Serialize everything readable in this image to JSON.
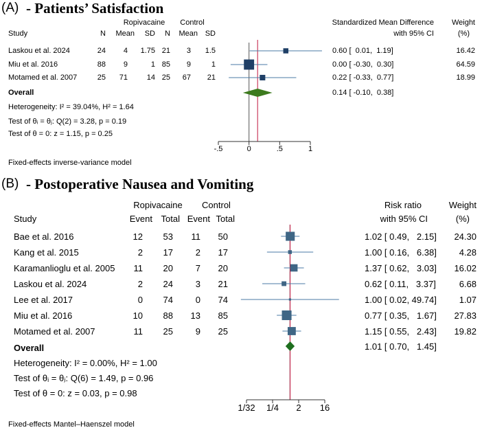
{
  "panel_a": {
    "letter": "(A)",
    "title": "- Patients’ Satisfaction",
    "header": {
      "group1": "Ropivacaine",
      "group2": "Control",
      "study": "Study",
      "cols": [
        "N",
        "Mean",
        "SD",
        "N",
        "Mean",
        "SD"
      ],
      "effect_line1": "Standardized Mean Difference",
      "effect_line2": "with 95% CI",
      "weight_line1": "Weight",
      "weight_line2": "(%)"
    },
    "rows": [
      {
        "study": "Laskou et al. 2024",
        "vals": [
          "24",
          "4",
          "1.75",
          "21",
          "3",
          "1.5"
        ],
        "effect_text": "0.60 [  0.01,  1.19]",
        "weight_text": "16.42"
      },
      {
        "study": "Miu et al. 2016",
        "vals": [
          "88",
          "9",
          "1",
          "85",
          "9",
          "1"
        ],
        "effect_text": "0.00 [ -0.30,  0.30]",
        "weight_text": "64.59"
      },
      {
        "study": "Motamed et al. 2007",
        "vals": [
          "25",
          "71",
          "14",
          "25",
          "67",
          "21"
        ],
        "effect_text": "0.22 [ -0.33,  0.77]",
        "weight_text": "18.99"
      }
    ],
    "overall": {
      "label": "Overall",
      "effect_text": "0.14 [ -0.10,  0.38]"
    },
    "stats": [
      "Heterogeneity: I² = 39.04%, H² = 1.64",
      "Test of θᵢ = θⱼ: Q(2) = 3.28, p = 0.19",
      "Test of θ = 0: z = 1.15, p = 0.25"
    ],
    "footer": "Fixed-effects inverse-variance model"
  },
  "panel_b": {
    "letter": "(B)",
    "title": "- Postoperative Nausea and Vomiting",
    "header": {
      "group1": "Ropivacaine",
      "group2": "Control",
      "study": "Study",
      "cols": [
        "Event",
        "Total",
        "Event",
        "Total"
      ],
      "effect_line1": "Risk ratio",
      "effect_line2": "with 95% CI",
      "weight_line1": "Weight",
      "weight_line2": "(%)"
    },
    "rows": [
      {
        "study": "Bae et al. 2016",
        "vals": [
          "12",
          "53",
          "11",
          "50"
        ],
        "effect_text": "1.02 [ 0.49,   2.15]",
        "weight_text": "24.30"
      },
      {
        "study": "Kang et al. 2015",
        "vals": [
          "2",
          "17",
          "2",
          "17"
        ],
        "effect_text": "1.00 [ 0.16,   6.38]",
        "weight_text": "4.28"
      },
      {
        "study": "Karamanlioglu et al. 2005",
        "vals": [
          "11",
          "20",
          "7",
          "20"
        ],
        "effect_text": "1.37 [ 0.62,   3.03]",
        "weight_text": "16.02"
      },
      {
        "study": "Laskou et al. 2024",
        "vals": [
          "2",
          "24",
          "3",
          "21"
        ],
        "effect_text": "0.62 [ 0.11,   3.37]",
        "weight_text": "6.68"
      },
      {
        "study": "Lee et al. 2017",
        "vals": [
          "0",
          "74",
          "0",
          "74"
        ],
        "effect_text": "1.00 [ 0.02, 49.74]",
        "weight_text": "1.07"
      },
      {
        "study": "Miu et al. 2016",
        "vals": [
          "10",
          "88",
          "13",
          "85"
        ],
        "effect_text": "0.77 [ 0.35,   1.67]",
        "weight_text": "27.83"
      },
      {
        "study": "Motamed et al. 2007",
        "vals": [
          "11",
          "25",
          "9",
          "25"
        ],
        "effect_text": "1.15 [ 0.55,   2.43]",
        "weight_text": "19.82"
      }
    ],
    "overall": {
      "label": "Overall",
      "effect_text": "1.01 [ 0.70,   1.45]"
    },
    "stats": [
      "Heterogeneity: I² = 0.00%, H² = 1.00",
      "Test of θᵢ = θⱼ: Q(6) = 1.49, p = 0.96",
      "Test of θ = 0: z = 0.03, p = 0.98"
    ],
    "footer": "Fixed-effects Mantel–Haenszel model"
  },
  "chart_data": [
    {
      "type": "forest",
      "title": "Patients’ Satisfaction",
      "measure": "Standardized Mean Difference",
      "scale": "linear",
      "xlim": [
        -0.5,
        1.0
      ],
      "ticks": [
        -0.5,
        0,
        0.5,
        1
      ],
      "tick_labels": [
        "-.5",
        "0",
        ".5",
        "1"
      ],
      "null_value": 0,
      "studies": [
        {
          "name": "Laskou et al. 2024",
          "est": 0.6,
          "lo": 0.01,
          "hi": 1.19,
          "weight": 16.42
        },
        {
          "name": "Miu et al. 2016",
          "est": 0.0,
          "lo": -0.3,
          "hi": 0.3,
          "weight": 64.59
        },
        {
          "name": "Motamed et al. 2007",
          "est": 0.22,
          "lo": -0.33,
          "hi": 0.77,
          "weight": 18.99
        }
      ],
      "overall": {
        "est": 0.14,
        "lo": -0.1,
        "hi": 0.38
      },
      "colors": {
        "marker": "#1f3f66",
        "ci": "#4a7aa6",
        "diamond": "#3d7a1e",
        "ref": "#c0143c",
        "axis": "#333333"
      }
    },
    {
      "type": "forest",
      "title": "Postoperative Nausea and Vomiting",
      "measure": "Risk ratio",
      "scale": "log2",
      "xlim": [
        0.03125,
        16
      ],
      "ticks": [
        0.03125,
        0.25,
        2,
        16
      ],
      "tick_labels": [
        "1/32",
        "1/4",
        "2",
        "16"
      ],
      "null_value": 1,
      "studies": [
        {
          "name": "Bae et al. 2016",
          "est": 1.02,
          "lo": 0.49,
          "hi": 2.15,
          "weight": 24.3
        },
        {
          "name": "Kang et al. 2015",
          "est": 1.0,
          "lo": 0.16,
          "hi": 6.38,
          "weight": 4.28
        },
        {
          "name": "Karamanlioglu et al. 2005",
          "est": 1.37,
          "lo": 0.62,
          "hi": 3.03,
          "weight": 16.02
        },
        {
          "name": "Laskou et al. 2024",
          "est": 0.62,
          "lo": 0.11,
          "hi": 3.37,
          "weight": 6.68
        },
        {
          "name": "Lee et al. 2017",
          "est": 1.0,
          "lo": 0.02,
          "hi": 49.74,
          "weight": 1.07
        },
        {
          "name": "Miu et al. 2016",
          "est": 0.77,
          "lo": 0.35,
          "hi": 1.67,
          "weight": 27.83
        },
        {
          "name": "Motamed et al. 2007",
          "est": 1.15,
          "lo": 0.55,
          "hi": 2.43,
          "weight": 19.82
        }
      ],
      "overall": {
        "est": 1.01,
        "lo": 0.7,
        "hi": 1.45
      },
      "colors": {
        "marker": "#3f6685",
        "ci": "#4a7aa6",
        "diamond": "#1e6e1e",
        "ref": "#c0143c",
        "axis": "#333333"
      }
    }
  ]
}
